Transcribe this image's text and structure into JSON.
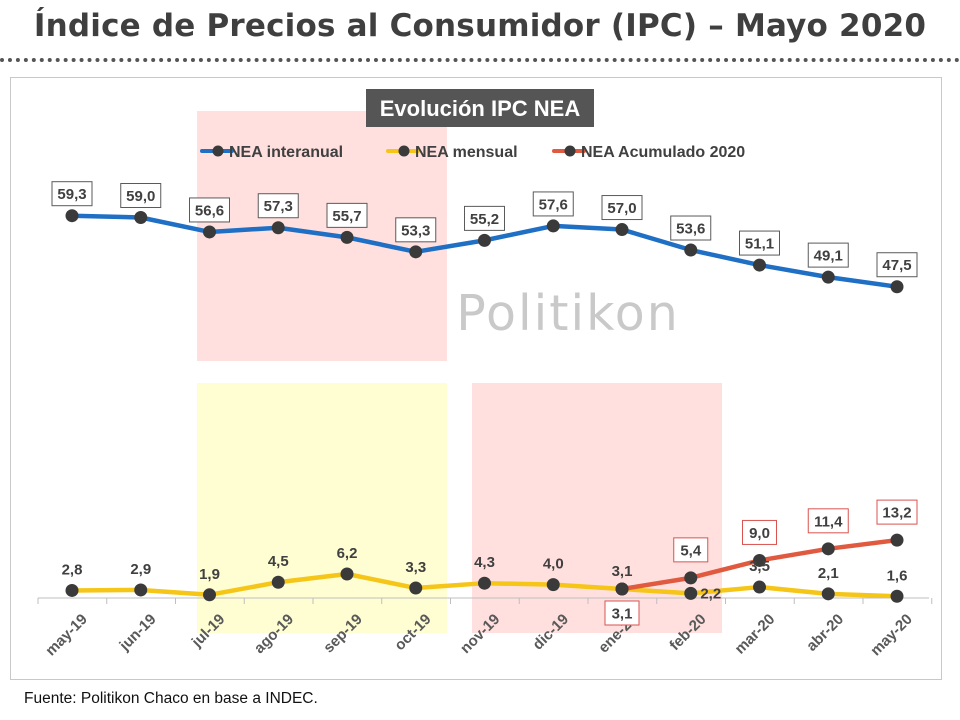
{
  "header": {
    "title": "Índice de Precios al Consumidor (IPC) – Mayo 2020"
  },
  "watermark": {
    "text": "Politikon"
  },
  "source": {
    "label": "Fuente",
    "text": ": Politikon Chaco en base a INDEC."
  },
  "colors": {
    "interanual": "#1f6fc5",
    "mensual": "#f5c518",
    "acumulado": "#e05a40",
    "marker": "#3a3a3a",
    "title_bg": "#555555"
  },
  "chart_data": {
    "type": "line",
    "title": "Evolución IPC NEA",
    "xlabel": "",
    "ylabel": "",
    "grid": false,
    "legend_position": "top",
    "categories": [
      "may-19",
      "jun-19",
      "jul-19",
      "ago-19",
      "sep-19",
      "oct-19",
      "nov-19",
      "dic-19",
      "ene-20",
      "feb-20",
      "mar-20",
      "abr-20",
      "may-20"
    ],
    "series": [
      {
        "name": "NEA interanual",
        "key": "interanual",
        "label_style": "box-dark",
        "values": [
          59.3,
          59.0,
          56.6,
          57.3,
          55.7,
          53.3,
          55.2,
          57.6,
          57.0,
          53.6,
          51.1,
          49.1,
          47.5
        ]
      },
      {
        "name": "NEA mensual",
        "key": "mensual",
        "label_style": "plain",
        "values": [
          2.8,
          2.9,
          1.9,
          4.5,
          6.2,
          3.3,
          4.3,
          4.0,
          3.1,
          2.2,
          3.5,
          2.1,
          1.6
        ]
      },
      {
        "name": "NEA Acumulado 2020",
        "key": "acumulado",
        "label_style": "box-red",
        "values": [
          null,
          null,
          null,
          null,
          null,
          null,
          null,
          null,
          3.1,
          5.4,
          9.0,
          11.4,
          13.2
        ]
      }
    ],
    "data_labels": {
      "interanual": [
        "59,3",
        "59,0",
        "56,6",
        "57,3",
        "55,7",
        "53,3",
        "55,2",
        "57,6",
        "57,0",
        "53,6",
        "51,1",
        "49,1",
        "47,5"
      ],
      "mensual": [
        "2,8",
        "2,9",
        "1,9",
        "4,5",
        "6,2",
        "3,3",
        "4,3",
        "4,0",
        "3,1",
        "2,2",
        "3,5",
        "2,1",
        "1,6"
      ],
      "acumulado": [
        null,
        null,
        null,
        null,
        null,
        null,
        null,
        null,
        "3,1",
        "5,4",
        "9,0",
        "11,4",
        "13,2"
      ]
    }
  }
}
